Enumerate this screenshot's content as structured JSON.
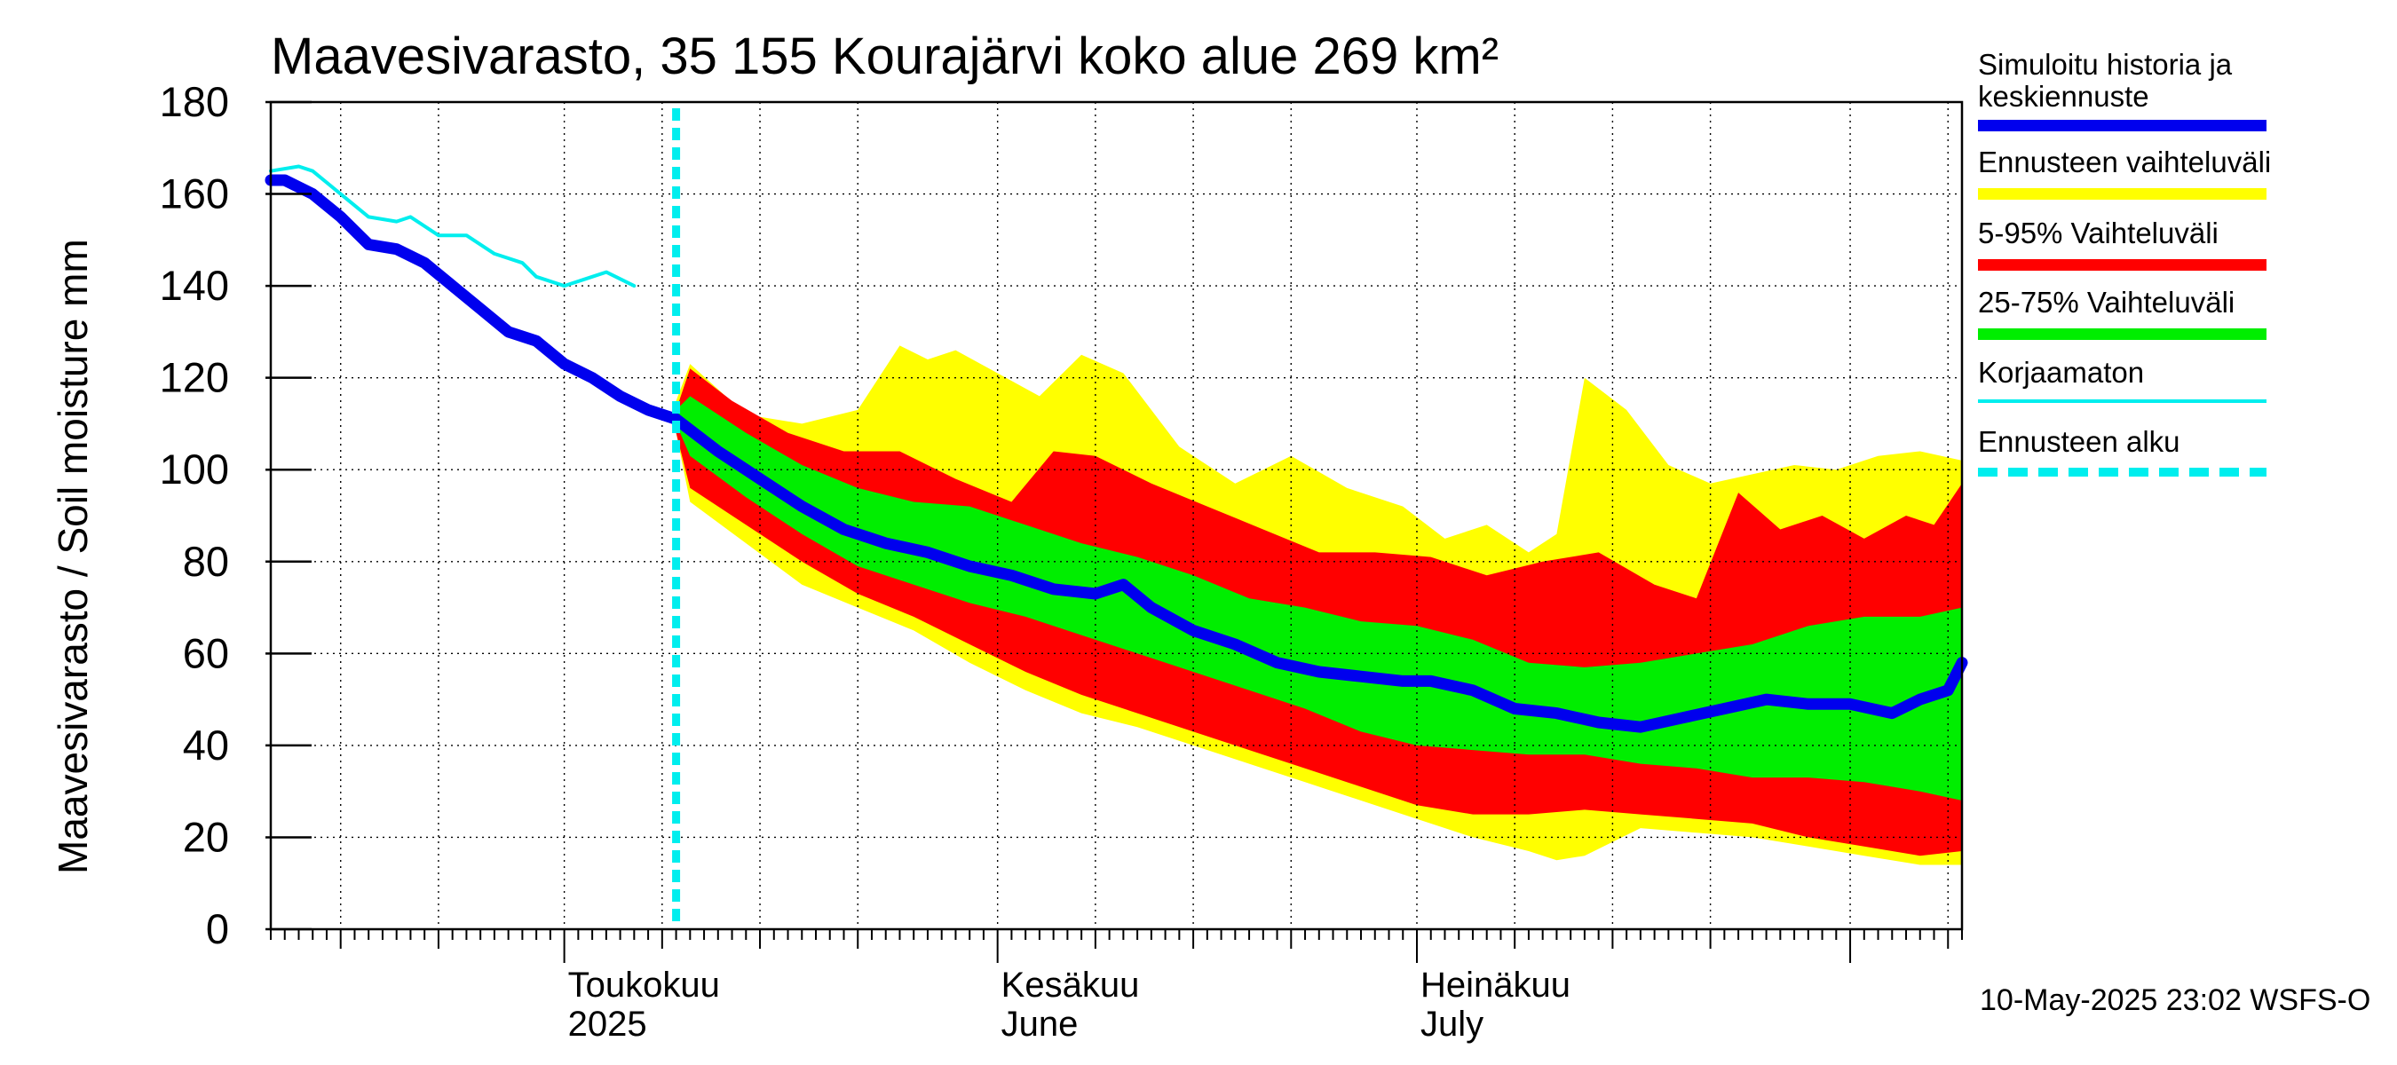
{
  "title": "Maavesivarasto, 35 155 Kourajärvi koko alue 269 km²",
  "footer": "10-May-2025 23:02 WSFS-O",
  "legend": [
    {
      "label": "Simuloitu historia ja keskiennuste",
      "color": "#0000ee",
      "style": "thick"
    },
    {
      "label": "Ennusteen vaihteluväli",
      "color": "#ffff00",
      "style": "thick"
    },
    {
      "label": "5-95% Vaihteluväli",
      "color": "#ff0000",
      "style": "thick"
    },
    {
      "label": "25-75% Vaihteluväli",
      "color": "#00ee00",
      "style": "thick"
    },
    {
      "label": "Korjaamaton",
      "color": "#00eeee",
      "style": "thin"
    },
    {
      "label": "Ennusteen alku",
      "color": "#00eeee",
      "style": "dashed"
    }
  ],
  "chart_data": {
    "type": "area",
    "title": "Maavesivarasto, 35 155 Kourajärvi koko alue 269 km²",
    "ylabel": "Maavesivarasto / Soil moisture   mm",
    "xlabel": "",
    "ylim": [
      0,
      180
    ],
    "yticks": [
      0,
      20,
      40,
      60,
      80,
      100,
      120,
      140,
      160,
      180
    ],
    "xlim": [
      "2025-04-10",
      "2025-08-09"
    ],
    "xtick_labels": [
      {
        "date": "2025-05-01",
        "line1": "Toukokuu",
        "line2": "2025"
      },
      {
        "date": "2025-06-01",
        "line1": "Kesäkuu",
        "line2": "June"
      },
      {
        "date": "2025-07-01",
        "line1": "Heinäkuu",
        "line2": "July"
      }
    ],
    "forecast_start": "2025-05-09",
    "grid": true,
    "legend_position": "right",
    "colors": {
      "median": "#0000ee",
      "range": "#ffff00",
      "p5_95": "#ff0000",
      "p25_75": "#00ee00",
      "uncorrected": "#00eeee",
      "forecast_start": "#00eeee"
    },
    "series": {
      "uncorrected": {
        "x": [
          "2025-04-10",
          "2025-04-12",
          "2025-04-13",
          "2025-04-15",
          "2025-04-17",
          "2025-04-19",
          "2025-04-20",
          "2025-04-22",
          "2025-04-24",
          "2025-04-26",
          "2025-04-28",
          "2025-04-29",
          "2025-05-01",
          "2025-05-03",
          "2025-05-04",
          "2025-05-06"
        ],
        "y": [
          165,
          166,
          165,
          160,
          155,
          154,
          155,
          151,
          151,
          147,
          145,
          142,
          140,
          142,
          143,
          140
        ]
      },
      "median": {
        "x": [
          "2025-04-10",
          "2025-04-11",
          "2025-04-13",
          "2025-04-15",
          "2025-04-17",
          "2025-04-19",
          "2025-04-21",
          "2025-04-23",
          "2025-04-25",
          "2025-04-27",
          "2025-04-29",
          "2025-05-01",
          "2025-05-03",
          "2025-05-05",
          "2025-05-07",
          "2025-05-09",
          "2025-05-12",
          "2025-05-15",
          "2025-05-18",
          "2025-05-21",
          "2025-05-24",
          "2025-05-27",
          "2025-05-30",
          "2025-06-02",
          "2025-06-05",
          "2025-06-08",
          "2025-06-10",
          "2025-06-12",
          "2025-06-15",
          "2025-06-18",
          "2025-06-21",
          "2025-06-24",
          "2025-06-27",
          "2025-06-30",
          "2025-07-02",
          "2025-07-05",
          "2025-07-08",
          "2025-07-11",
          "2025-07-14",
          "2025-07-17",
          "2025-07-20",
          "2025-07-23",
          "2025-07-26",
          "2025-07-29",
          "2025-08-01",
          "2025-08-04",
          "2025-08-06",
          "2025-08-08",
          "2025-08-09"
        ],
        "y": [
          163,
          163,
          160,
          155,
          149,
          148,
          145,
          140,
          135,
          130,
          128,
          123,
          120,
          116,
          113,
          111,
          104,
          98,
          92,
          87,
          84,
          82,
          79,
          77,
          74,
          73,
          75,
          70,
          65,
          62,
          58,
          56,
          55,
          54,
          54,
          52,
          48,
          47,
          45,
          44,
          46,
          48,
          50,
          49,
          49,
          47,
          50,
          52,
          58
        ]
      },
      "range_upper": {
        "x": [
          "2025-05-09",
          "2025-05-10",
          "2025-05-14",
          "2025-05-18",
          "2025-05-22",
          "2025-05-25",
          "2025-05-27",
          "2025-05-29",
          "2025-06-01",
          "2025-06-04",
          "2025-06-07",
          "2025-06-10",
          "2025-06-14",
          "2025-06-18",
          "2025-06-22",
          "2025-06-26",
          "2025-06-30",
          "2025-07-03",
          "2025-07-06",
          "2025-07-09",
          "2025-07-11",
          "2025-07-13",
          "2025-07-16",
          "2025-07-19",
          "2025-07-22",
          "2025-07-25",
          "2025-07-28",
          "2025-07-31",
          "2025-08-03",
          "2025-08-06",
          "2025-08-09"
        ],
        "y": [
          115,
          123,
          112,
          110,
          113,
          127,
          124,
          126,
          121,
          116,
          125,
          121,
          105,
          97,
          103,
          96,
          92,
          85,
          88,
          82,
          86,
          120,
          113,
          101,
          97,
          99,
          101,
          100,
          103,
          104,
          102
        ]
      },
      "range_lower": {
        "x": [
          "2025-05-09",
          "2025-05-10",
          "2025-05-14",
          "2025-05-18",
          "2025-05-22",
          "2025-05-26",
          "2025-05-30",
          "2025-06-03",
          "2025-06-07",
          "2025-06-11",
          "2025-06-15",
          "2025-06-19",
          "2025-06-23",
          "2025-06-27",
          "2025-07-01",
          "2025-07-05",
          "2025-07-09",
          "2025-07-11",
          "2025-07-13",
          "2025-07-17",
          "2025-07-21",
          "2025-07-25",
          "2025-07-29",
          "2025-08-02",
          "2025-08-06",
          "2025-08-09"
        ],
        "y": [
          108,
          93,
          84,
          75,
          70,
          65,
          58,
          52,
          47,
          44,
          40,
          36,
          32,
          28,
          24,
          20,
          17,
          15,
          16,
          22,
          21,
          20,
          18,
          16,
          14,
          14
        ]
      },
      "p5_95_upper": {
        "x": [
          "2025-05-09",
          "2025-05-10",
          "2025-05-13",
          "2025-05-17",
          "2025-05-21",
          "2025-05-25",
          "2025-05-29",
          "2025-06-02",
          "2025-06-05",
          "2025-06-08",
          "2025-06-12",
          "2025-06-16",
          "2025-06-20",
          "2025-06-24",
          "2025-06-28",
          "2025-07-02",
          "2025-07-06",
          "2025-07-10",
          "2025-07-14",
          "2025-07-18",
          "2025-07-21",
          "2025-07-24",
          "2025-07-27",
          "2025-07-30",
          "2025-08-02",
          "2025-08-05",
          "2025-08-07",
          "2025-08-09"
        ],
        "y": [
          113,
          122,
          115,
          108,
          104,
          104,
          98,
          93,
          104,
          103,
          97,
          92,
          87,
          82,
          82,
          81,
          77,
          80,
          82,
          75,
          72,
          95,
          87,
          90,
          85,
          90,
          88,
          97
        ]
      },
      "p5_95_lower": {
        "x": [
          "2025-05-09",
          "2025-05-10",
          "2025-05-14",
          "2025-05-18",
          "2025-05-22",
          "2025-05-26",
          "2025-05-30",
          "2025-06-03",
          "2025-06-07",
          "2025-06-11",
          "2025-06-15",
          "2025-06-19",
          "2025-06-23",
          "2025-06-27",
          "2025-07-01",
          "2025-07-05",
          "2025-07-09",
          "2025-07-13",
          "2025-07-17",
          "2025-07-21",
          "2025-07-25",
          "2025-07-29",
          "2025-08-02",
          "2025-08-06",
          "2025-08-09"
        ],
        "y": [
          108,
          96,
          88,
          80,
          73,
          68,
          62,
          56,
          51,
          47,
          43,
          39,
          35,
          31,
          27,
          25,
          25,
          26,
          25,
          24,
          23,
          20,
          18,
          16,
          17
        ]
      },
      "p25_75_upper": {
        "x": [
          "2025-05-09",
          "2025-05-10",
          "2025-05-14",
          "2025-05-18",
          "2025-05-22",
          "2025-05-26",
          "2025-05-30",
          "2025-06-03",
          "2025-06-07",
          "2025-06-11",
          "2025-06-15",
          "2025-06-19",
          "2025-06-23",
          "2025-06-27",
          "2025-07-01",
          "2025-07-05",
          "2025-07-09",
          "2025-07-13",
          "2025-07-17",
          "2025-07-21",
          "2025-07-25",
          "2025-07-29",
          "2025-08-02",
          "2025-08-06",
          "2025-08-09"
        ],
        "y": [
          113,
          116,
          108,
          101,
          96,
          93,
          92,
          88,
          84,
          81,
          77,
          72,
          70,
          67,
          66,
          63,
          58,
          57,
          58,
          60,
          62,
          66,
          68,
          68,
          70
        ]
      },
      "p25_75_lower": {
        "x": [
          "2025-05-09",
          "2025-05-10",
          "2025-05-14",
          "2025-05-18",
          "2025-05-22",
          "2025-05-26",
          "2025-05-30",
          "2025-06-03",
          "2025-06-07",
          "2025-06-11",
          "2025-06-15",
          "2025-06-19",
          "2025-06-23",
          "2025-06-27",
          "2025-07-01",
          "2025-07-05",
          "2025-07-09",
          "2025-07-13",
          "2025-07-17",
          "2025-07-21",
          "2025-07-25",
          "2025-07-29",
          "2025-08-02",
          "2025-08-06",
          "2025-08-09"
        ],
        "y": [
          110,
          103,
          94,
          86,
          79,
          75,
          71,
          68,
          64,
          60,
          56,
          52,
          48,
          43,
          40,
          39,
          38,
          38,
          36,
          35,
          33,
          33,
          32,
          30,
          28
        ]
      }
    }
  }
}
